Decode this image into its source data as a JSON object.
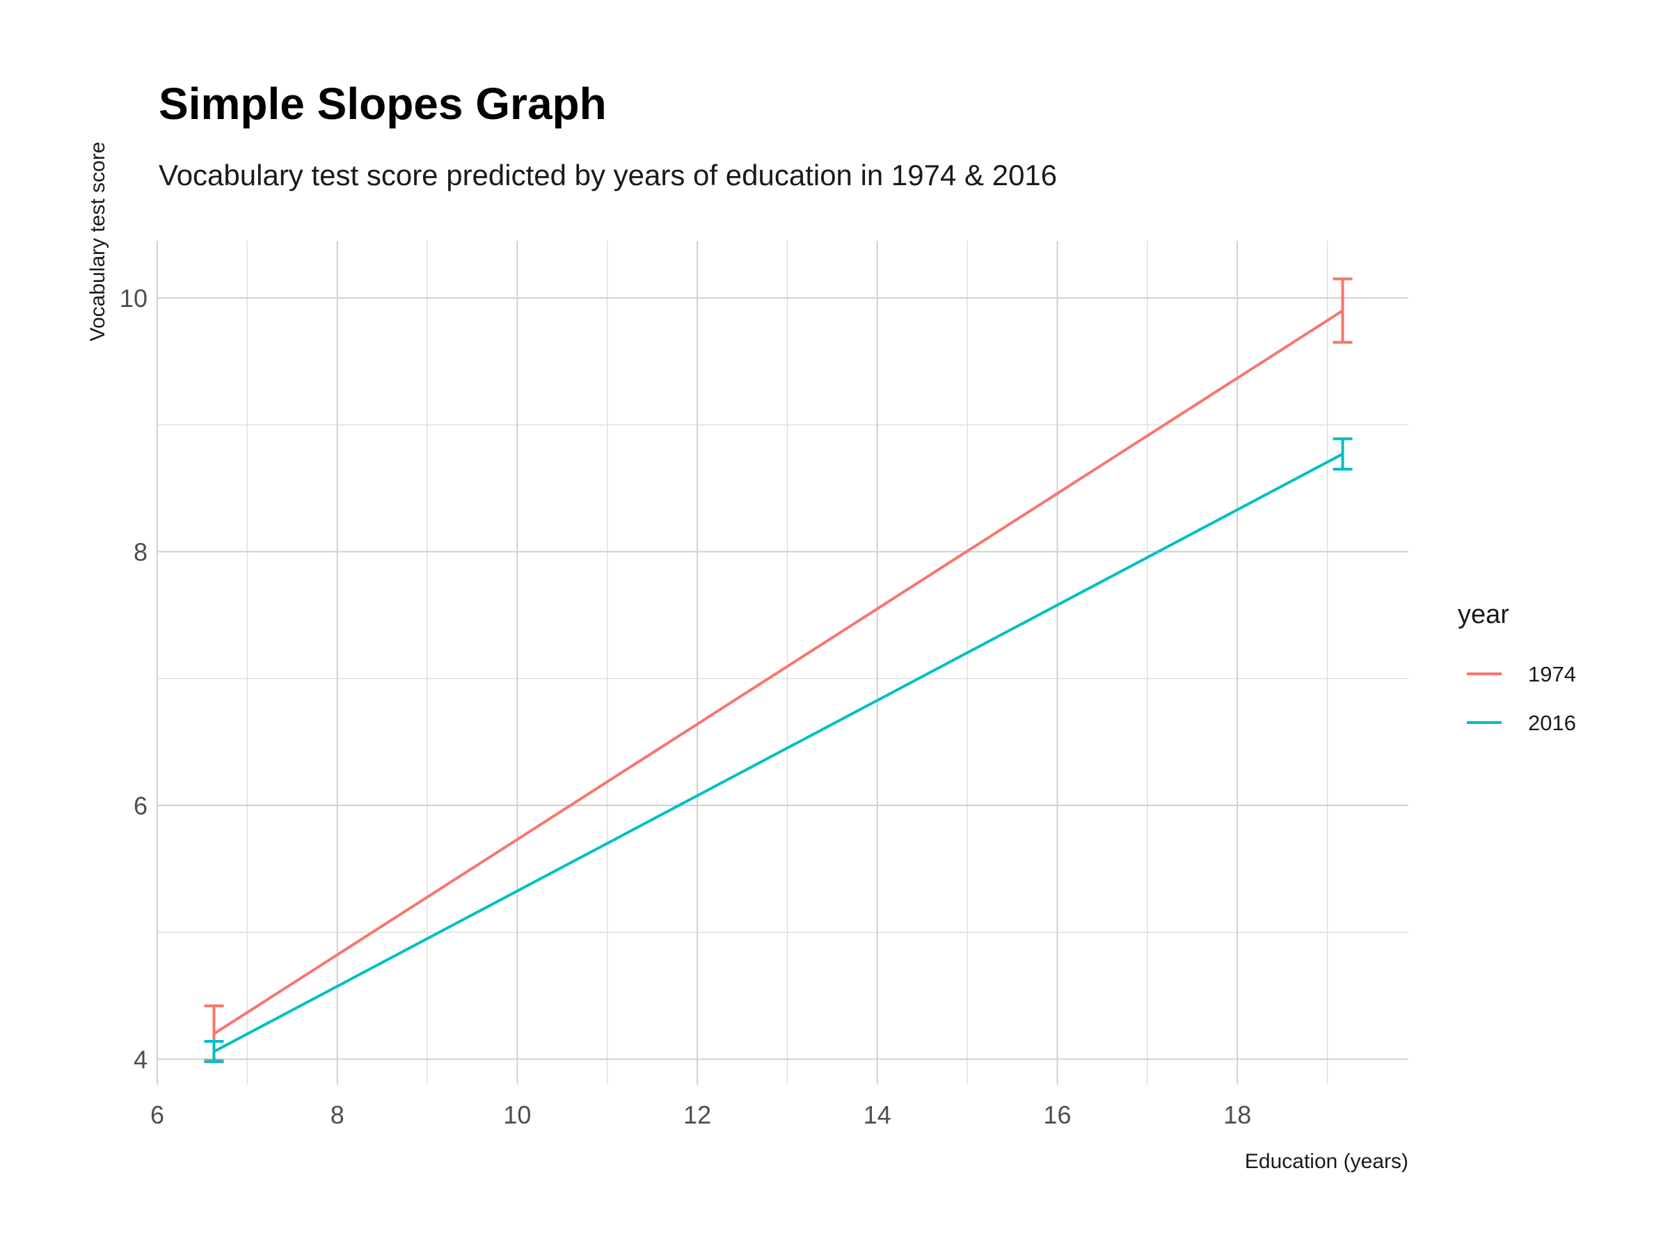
{
  "chart_data": {
    "type": "line",
    "title": "Simple Slopes Graph",
    "subtitle": "Vocabulary test score predicted by years of education in 1974 & 2016",
    "xlabel": "Education (years)",
    "ylabel": "Vocabulary test score",
    "xlim": [
      6,
      19.9
    ],
    "ylim": [
      3.8,
      10.45
    ],
    "x_ticks": [
      6,
      8,
      10,
      12,
      14,
      16,
      18
    ],
    "y_ticks": [
      4,
      6,
      8,
      10
    ],
    "x_tick_labels": [
      "6",
      "8",
      "10",
      "12",
      "14",
      "16",
      "18"
    ],
    "y_tick_labels": [
      "4",
      "6",
      "8",
      "10"
    ],
    "grid": true,
    "legend": {
      "title": "year",
      "position": "right"
    },
    "series": [
      {
        "name": "1974",
        "color": "#F8766D",
        "x": [
          6.63,
          19.17
        ],
        "y": [
          4.2,
          9.9
        ],
        "error_low": [
          3.99,
          9.65
        ],
        "error_high": [
          4.42,
          10.15
        ]
      },
      {
        "name": "2016",
        "color": "#00BFC4",
        "x": [
          6.63,
          19.17
        ],
        "y": [
          4.06,
          8.77
        ],
        "error_low": [
          3.98,
          8.65
        ],
        "error_high": [
          4.14,
          8.89
        ]
      }
    ]
  }
}
